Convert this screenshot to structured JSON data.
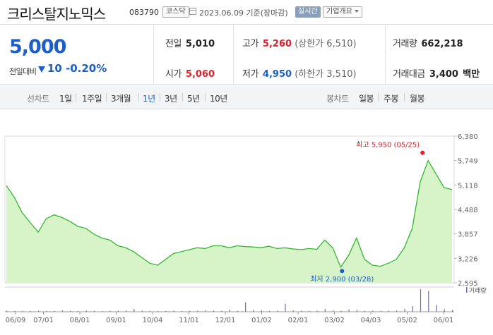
{
  "header": {
    "stock_name": "크리스탈지노믹스",
    "stock_code": "083790",
    "market_badge": "코스닥",
    "date_text": "2023.06.09 기준(장마감)",
    "realtime_badge": "실시간",
    "company_overview_button": "기업개요"
  },
  "summary": {
    "price": "5,000",
    "compare_label": "전일대비",
    "change": "10",
    "change_pct": "-0.20%",
    "prev_close_label": "전일",
    "prev_close": "5,010",
    "high_label": "고가",
    "high": "5,260",
    "upper_limit": "(상한가 6,510)",
    "volume_label": "거래량",
    "volume": "662,218",
    "open_label": "시가",
    "open": "5,060",
    "low_label": "저가",
    "low": "4,950",
    "lower_limit": "(하한가 3,510)",
    "amount_label": "거래대금",
    "amount": "3,400",
    "amount_unit": "백만"
  },
  "period_bar": {
    "line_chart_label": "선차트",
    "periods": [
      "1일",
      "1주일",
      "3개월",
      "1년",
      "3년",
      "5년",
      "10년"
    ],
    "active_period": "1년",
    "candle_chart_label": "봉차트",
    "candles": [
      "일봉",
      "주봉",
      "월봉"
    ]
  },
  "colors": {
    "up": "#e0202a",
    "down": "#1e5fc7",
    "line": "#35b532",
    "fill": "#d7f4c9"
  },
  "chart_data": {
    "type": "area",
    "yticks": [
      2595,
      3226,
      3857,
      4488,
      5118,
      5749,
      6380
    ],
    "ytick_labels": [
      "2,595",
      "3,226",
      "3,857",
      "4,488",
      "5,118",
      "5,749",
      "6,380"
    ],
    "ylim": [
      2595,
      6380
    ],
    "xtick_labels": [
      "06/09",
      "07/01",
      "08/01",
      "09/01",
      "10/04",
      "11/01",
      "12/01",
      "01/02",
      "02/01",
      "03/02",
      "04/03",
      "05/02",
      "06/01"
    ],
    "max_annotation": "최고 5,950 (05/25)",
    "min_annotation": "최저 2,900 (03/28)",
    "max_value": 5950,
    "min_value": 2900,
    "volume_legend": "거래량",
    "price_series": [
      5100,
      4800,
      4400,
      4150,
      3900,
      4250,
      4350,
      4280,
      4180,
      4050,
      4000,
      3850,
      3750,
      3700,
      3550,
      3500,
      3400,
      3250,
      3100,
      3050,
      3200,
      3350,
      3400,
      3450,
      3500,
      3480,
      3550,
      3550,
      3500,
      3550,
      3530,
      3520,
      3500,
      3540,
      3480,
      3500,
      3470,
      3450,
      3480,
      3460,
      3700,
      3500,
      3000,
      3300,
      3750,
      3200,
      3050,
      3020,
      3100,
      3200,
      3500,
      4000,
      5200,
      5750,
      5400,
      5050,
      5000
    ],
    "volume_series": [
      0.05,
      0.03,
      0.04,
      0.03,
      0.05,
      0.04,
      0.03,
      0.06,
      0.04,
      0.03,
      0.05,
      0.04,
      0.03,
      0.04,
      0.05,
      0.06,
      0.12,
      0.05,
      0.04,
      0.03,
      0.04,
      0.05,
      0.03,
      0.04,
      0.05,
      0.07,
      0.05,
      0.04,
      0.1,
      0.04,
      0.42,
      0.08,
      0.06,
      0.04,
      0.05,
      0.35,
      0.06,
      0.05,
      0.04,
      0.05,
      0.12,
      0.06,
      0.04,
      0.1,
      0.08,
      0.04,
      0.05,
      0.04,
      0.05,
      0.06,
      0.12,
      0.25,
      1.0,
      0.92,
      0.3,
      0.12,
      0.08
    ]
  }
}
